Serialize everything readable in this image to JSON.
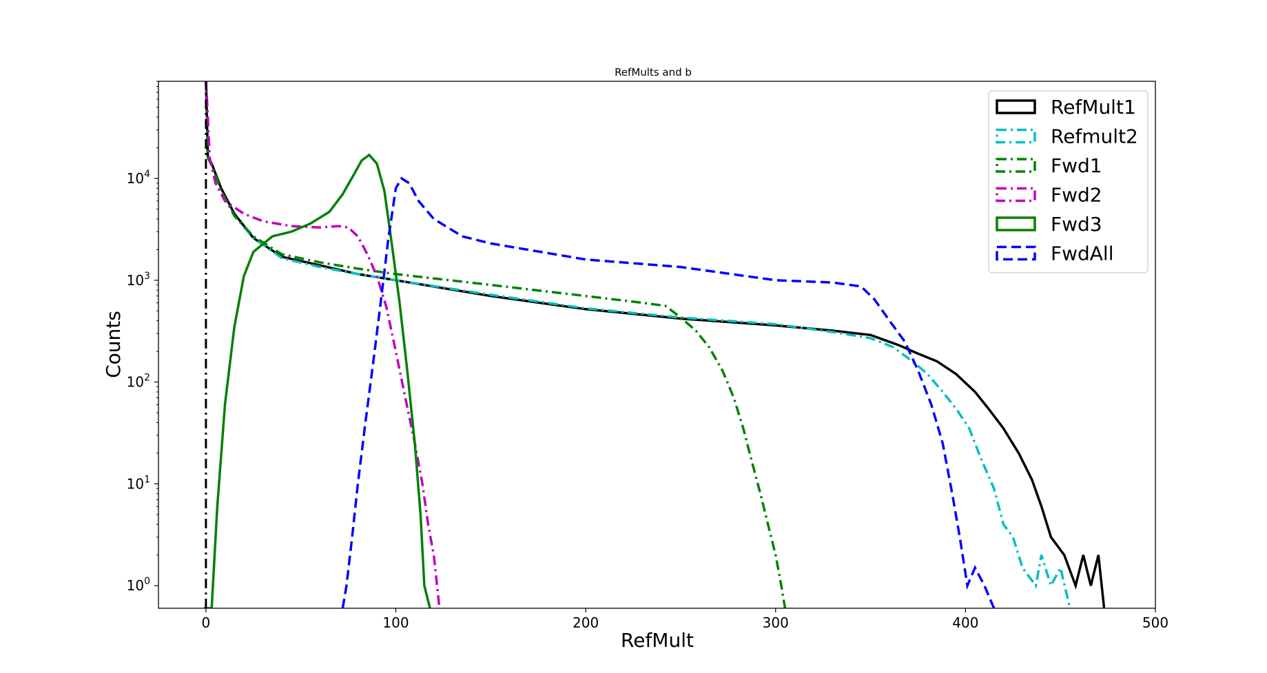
{
  "chart_data": {
    "type": "line",
    "title": "RefMults and b",
    "xlabel": "RefMult",
    "ylabel": "Counts",
    "xlim": [
      -25,
      500
    ],
    "ylim": [
      0.6,
      90000
    ],
    "yscale": "log",
    "grid": false,
    "legend_position": "top-right",
    "x_ticks": [
      0,
      100,
      200,
      300,
      400,
      500
    ],
    "x_tick_labels": [
      "0",
      "100",
      "200",
      "300",
      "400",
      "500"
    ],
    "y_ticks": [
      1,
      10,
      100,
      1000,
      10000
    ],
    "y_tick_labels": [
      {
        "base": "10",
        "exp": "0"
      },
      {
        "base": "10",
        "exp": "1"
      },
      {
        "base": "10",
        "exp": "2"
      },
      {
        "base": "10",
        "exp": "3"
      },
      {
        "base": "10",
        "exp": "4"
      }
    ],
    "series": [
      {
        "name": "RefMult1",
        "color": "#000000",
        "dash": "solid",
        "points": [
          [
            0,
            100000
          ],
          [
            1,
            16000
          ],
          [
            3,
            14000
          ],
          [
            8,
            8000
          ],
          [
            15,
            4500
          ],
          [
            25,
            2600
          ],
          [
            40,
            1700
          ],
          [
            60,
            1400
          ],
          [
            80,
            1150
          ],
          [
            100,
            1000
          ],
          [
            150,
            700
          ],
          [
            200,
            520
          ],
          [
            250,
            420
          ],
          [
            300,
            360
          ],
          [
            330,
            320
          ],
          [
            350,
            290
          ],
          [
            365,
            230
          ],
          [
            375,
            190
          ],
          [
            385,
            160
          ],
          [
            395,
            120
          ],
          [
            405,
            80
          ],
          [
            412,
            55
          ],
          [
            420,
            35
          ],
          [
            428,
            20
          ],
          [
            435,
            11
          ],
          [
            440,
            6
          ],
          [
            445,
            3
          ],
          [
            452,
            2
          ],
          [
            458,
            1
          ],
          [
            462,
            2
          ],
          [
            466,
            1
          ],
          [
            470,
            2
          ],
          [
            473,
            0.6
          ]
        ]
      },
      {
        "name": "Refmult2",
        "color": "#00bfbf",
        "dash": "dashdot",
        "points": [
          [
            0,
            100000
          ],
          [
            1,
            16000
          ],
          [
            3,
            13500
          ],
          [
            8,
            7500
          ],
          [
            15,
            4300
          ],
          [
            25,
            2600
          ],
          [
            40,
            1650
          ],
          [
            60,
            1350
          ],
          [
            80,
            1150
          ],
          [
            100,
            1000
          ],
          [
            150,
            720
          ],
          [
            200,
            530
          ],
          [
            250,
            430
          ],
          [
            300,
            370
          ],
          [
            330,
            310
          ],
          [
            350,
            270
          ],
          [
            362,
            220
          ],
          [
            372,
            160
          ],
          [
            380,
            120
          ],
          [
            388,
            80
          ],
          [
            395,
            55
          ],
          [
            402,
            35
          ],
          [
            408,
            18
          ],
          [
            415,
            9
          ],
          [
            420,
            4
          ],
          [
            425,
            3
          ],
          [
            430,
            1.5
          ],
          [
            437,
            1
          ],
          [
            440,
            2
          ],
          [
            445,
            1
          ],
          [
            450,
            1.5
          ],
          [
            455,
            0.6
          ]
        ]
      },
      {
        "name": "Fwd1",
        "color": "#008000",
        "dash": "dashdot",
        "points": [
          [
            0,
            100000
          ],
          [
            1,
            16000
          ],
          [
            3,
            13500
          ],
          [
            8,
            7500
          ],
          [
            15,
            4300
          ],
          [
            25,
            2700
          ],
          [
            40,
            1800
          ],
          [
            60,
            1500
          ],
          [
            80,
            1300
          ],
          [
            100,
            1150
          ],
          [
            150,
            900
          ],
          [
            200,
            700
          ],
          [
            230,
            600
          ],
          [
            242,
            560
          ],
          [
            250,
            430
          ],
          [
            258,
            320
          ],
          [
            265,
            220
          ],
          [
            272,
            130
          ],
          [
            278,
            70
          ],
          [
            283,
            35
          ],
          [
            287,
            18
          ],
          [
            292,
            8
          ],
          [
            296,
            4
          ],
          [
            300,
            2
          ],
          [
            303,
            1
          ],
          [
            305,
            0.6
          ]
        ]
      },
      {
        "name": "Fwd2",
        "color": "#bf00bf",
        "dash": "dashdot",
        "points": [
          [
            0,
            100000
          ],
          [
            2,
            16000
          ],
          [
            5,
            9000
          ],
          [
            10,
            6000
          ],
          [
            20,
            4500
          ],
          [
            30,
            3800
          ],
          [
            45,
            3400
          ],
          [
            60,
            3300
          ],
          [
            70,
            3400
          ],
          [
            75,
            3300
          ],
          [
            80,
            2700
          ],
          [
            85,
            1800
          ],
          [
            90,
            1100
          ],
          [
            95,
            550
          ],
          [
            100,
            200
          ],
          [
            105,
            70
          ],
          [
            110,
            25
          ],
          [
            114,
            10
          ],
          [
            117,
            4
          ],
          [
            120,
            2
          ],
          [
            123,
            0.6
          ]
        ]
      },
      {
        "name": "Fwd3",
        "color": "#008000",
        "dash": "solid",
        "points": [
          [
            -1,
            0.6
          ],
          [
            3,
            0.6
          ],
          [
            6,
            6
          ],
          [
            10,
            60
          ],
          [
            15,
            350
          ],
          [
            20,
            1100
          ],
          [
            25,
            1900
          ],
          [
            35,
            2700
          ],
          [
            45,
            3000
          ],
          [
            55,
            3600
          ],
          [
            65,
            4700
          ],
          [
            72,
            7000
          ],
          [
            78,
            11000
          ],
          [
            82,
            15000
          ],
          [
            86,
            17000
          ],
          [
            90,
            14000
          ],
          [
            94,
            7500
          ],
          [
            98,
            2200
          ],
          [
            102,
            600
          ],
          [
            106,
            130
          ],
          [
            110,
            25
          ],
          [
            113,
            5
          ],
          [
            115,
            1
          ],
          [
            118,
            0.6
          ]
        ]
      },
      {
        "name": "FwdAll",
        "color": "#0000ff",
        "dash": "dashed",
        "points": [
          [
            72,
            0.6
          ],
          [
            74,
            1
          ],
          [
            77,
            3
          ],
          [
            80,
            10
          ],
          [
            84,
            40
          ],
          [
            88,
            150
          ],
          [
            92,
            600
          ],
          [
            96,
            2500
          ],
          [
            100,
            8000
          ],
          [
            103,
            10000
          ],
          [
            107,
            9000
          ],
          [
            112,
            6000
          ],
          [
            120,
            4000
          ],
          [
            135,
            2700
          ],
          [
            150,
            2300
          ],
          [
            200,
            1600
          ],
          [
            250,
            1350
          ],
          [
            300,
            1000
          ],
          [
            330,
            950
          ],
          [
            345,
            870
          ],
          [
            352,
            650
          ],
          [
            360,
            400
          ],
          [
            368,
            250
          ],
          [
            375,
            130
          ],
          [
            382,
            60
          ],
          [
            388,
            25
          ],
          [
            393,
            8
          ],
          [
            397,
            3
          ],
          [
            401,
            1
          ],
          [
            405,
            1.5
          ],
          [
            410,
            1
          ],
          [
            415,
            0.6
          ]
        ]
      }
    ],
    "spike": {
      "x": 0,
      "y_top": 90000
    }
  }
}
